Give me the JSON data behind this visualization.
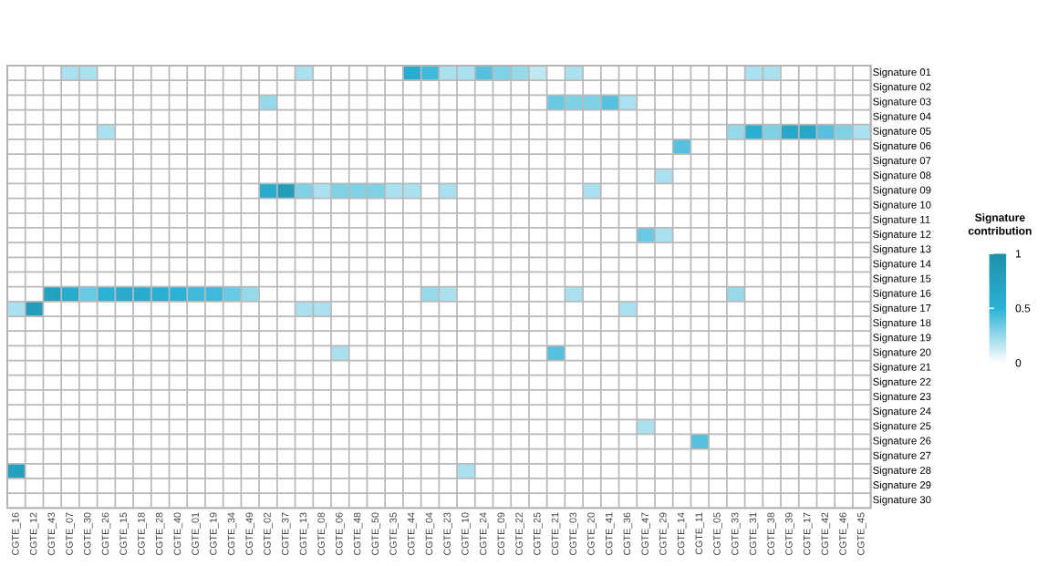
{
  "chart_data": {
    "type": "heatmap",
    "clabel": "Signature contribution",
    "categories": [
      "CGTE_16",
      "CGTE_12",
      "CGTE_43",
      "CGTE_07",
      "CGTE_30",
      "CGTE_26",
      "CGTE_15",
      "CGTE_18",
      "CGTE_28",
      "CGTE_40",
      "CGTE_01",
      "CGTE_19",
      "CGTE_34",
      "CGTE_49",
      "CGTE_02",
      "CGTE_37",
      "CGTE_13",
      "CGTE_08",
      "CGTE_06",
      "CGTE_48",
      "CGTE_50",
      "CGTE_35",
      "CGTE_44",
      "CGTE_04",
      "CGTE_23",
      "CGTE_10",
      "CGTE_24",
      "CGTE_09",
      "CGTE_22",
      "CGTE_25",
      "CGTE_21",
      "CGTE_03",
      "CGTE_20",
      "CGTE_41",
      "CGTE_36",
      "CGTE_47",
      "CGTE_29",
      "CGTE_14",
      "CGTE_11",
      "CGTE_05",
      "CGTE_33",
      "CGTE_31",
      "CGTE_38",
      "CGTE_39",
      "CGTE_17",
      "CGTE_42",
      "CGTE_46",
      "CGTE_45"
    ],
    "y_categories": [
      "Signature 01",
      "Signature 02",
      "Signature 03",
      "Signature 04",
      "Signature 05",
      "Signature 06",
      "Signature 07",
      "Signature 08",
      "Signature 09",
      "Signature 10",
      "Signature 11",
      "Signature 12",
      "Signature 13",
      "Signature 14",
      "Signature 15",
      "Signature 16",
      "Signature 17",
      "Signature 18",
      "Signature 19",
      "Signature 20",
      "Signature 21",
      "Signature 22",
      "Signature 23",
      "Signature 24",
      "Signature 25",
      "Signature 26",
      "Signature 27",
      "Signature 28",
      "Signature 29",
      "Signature 30"
    ],
    "cells": [
      [
        0,
        0,
        0,
        0.2,
        0.2,
        0,
        0,
        0,
        0,
        0,
        0,
        0,
        0,
        0,
        0,
        0,
        0.2,
        0,
        0,
        0,
        0,
        0,
        0.6,
        0.45,
        0.2,
        0.2,
        0.4,
        0.3,
        0.25,
        0.15,
        0,
        0.2,
        0,
        0,
        0,
        0,
        0,
        0,
        0,
        0,
        0,
        0.2,
        0.2,
        0,
        0,
        0,
        0,
        0
      ],
      [
        0,
        0,
        0,
        0,
        0,
        0,
        0,
        0,
        0,
        0,
        0,
        0,
        0,
        0,
        0,
        0,
        0,
        0,
        0,
        0,
        0,
        0,
        0,
        0,
        0,
        0,
        0,
        0,
        0,
        0,
        0,
        0,
        0,
        0,
        0,
        0,
        0,
        0,
        0,
        0,
        0,
        0,
        0,
        0,
        0,
        0,
        0,
        0
      ],
      [
        0,
        0,
        0,
        0,
        0,
        0,
        0,
        0,
        0,
        0,
        0,
        0,
        0,
        0,
        0.25,
        0,
        0,
        0,
        0,
        0,
        0,
        0,
        0,
        0,
        0,
        0,
        0,
        0,
        0,
        0,
        0.35,
        0.3,
        0.3,
        0.4,
        0.2,
        0,
        0,
        0,
        0,
        0,
        0,
        0,
        0,
        0,
        0,
        0,
        0,
        0
      ],
      [
        0,
        0,
        0,
        0,
        0,
        0,
        0,
        0,
        0,
        0,
        0,
        0,
        0,
        0,
        0,
        0,
        0,
        0,
        0,
        0,
        0,
        0,
        0,
        0,
        0,
        0,
        0,
        0,
        0,
        0,
        0,
        0,
        0,
        0,
        0,
        0,
        0,
        0,
        0,
        0,
        0,
        0,
        0,
        0,
        0,
        0,
        0,
        0
      ],
      [
        0,
        0,
        0,
        0,
        0,
        0.2,
        0,
        0,
        0,
        0,
        0,
        0,
        0,
        0,
        0,
        0,
        0,
        0,
        0,
        0,
        0,
        0,
        0,
        0,
        0,
        0,
        0,
        0,
        0,
        0,
        0,
        0,
        0,
        0,
        0,
        0,
        0,
        0,
        0,
        0,
        0.25,
        0.55,
        0.3,
        0.65,
        0.65,
        0.4,
        0.3,
        0.2
      ],
      [
        0,
        0,
        0,
        0,
        0,
        0,
        0,
        0,
        0,
        0,
        0,
        0,
        0,
        0,
        0,
        0,
        0,
        0,
        0,
        0,
        0,
        0,
        0,
        0,
        0,
        0,
        0,
        0,
        0,
        0,
        0,
        0,
        0,
        0,
        0,
        0,
        0,
        0.4,
        0,
        0,
        0,
        0,
        0,
        0,
        0,
        0,
        0,
        0
      ],
      [
        0,
        0,
        0,
        0,
        0,
        0,
        0,
        0,
        0,
        0,
        0,
        0,
        0,
        0,
        0,
        0,
        0,
        0,
        0,
        0,
        0,
        0,
        0,
        0,
        0,
        0,
        0,
        0,
        0,
        0,
        0,
        0,
        0,
        0,
        0,
        0,
        0,
        0,
        0,
        0,
        0,
        0,
        0,
        0,
        0,
        0,
        0,
        0
      ],
      [
        0,
        0,
        0,
        0,
        0,
        0,
        0,
        0,
        0,
        0,
        0,
        0,
        0,
        0,
        0,
        0,
        0,
        0,
        0,
        0,
        0,
        0,
        0,
        0,
        0,
        0,
        0,
        0,
        0,
        0,
        0,
        0,
        0,
        0,
        0,
        0,
        0.2,
        0,
        0,
        0,
        0,
        0,
        0,
        0,
        0,
        0,
        0,
        0
      ],
      [
        0,
        0,
        0,
        0,
        0,
        0,
        0,
        0,
        0,
        0,
        0,
        0,
        0,
        0,
        0.6,
        0.8,
        0.3,
        0.2,
        0.3,
        0.3,
        0.3,
        0.2,
        0.2,
        0,
        0.2,
        0,
        0,
        0,
        0,
        0,
        0,
        0,
        0.2,
        0,
        0,
        0,
        0,
        0,
        0,
        0,
        0,
        0,
        0,
        0,
        0,
        0,
        0,
        0
      ],
      [
        0,
        0,
        0,
        0,
        0,
        0,
        0,
        0,
        0,
        0,
        0,
        0,
        0,
        0,
        0,
        0,
        0,
        0,
        0,
        0,
        0,
        0,
        0,
        0,
        0,
        0,
        0,
        0,
        0,
        0,
        0,
        0,
        0,
        0,
        0,
        0,
        0,
        0,
        0,
        0,
        0,
        0,
        0,
        0,
        0,
        0,
        0,
        0
      ],
      [
        0,
        0,
        0,
        0,
        0,
        0,
        0,
        0,
        0,
        0,
        0,
        0,
        0,
        0,
        0,
        0,
        0,
        0,
        0,
        0,
        0,
        0,
        0,
        0,
        0,
        0,
        0,
        0,
        0,
        0,
        0,
        0,
        0,
        0,
        0,
        0,
        0,
        0,
        0,
        0,
        0,
        0,
        0,
        0,
        0,
        0,
        0,
        0
      ],
      [
        0,
        0,
        0,
        0,
        0,
        0,
        0,
        0,
        0,
        0,
        0,
        0,
        0,
        0,
        0,
        0,
        0,
        0,
        0,
        0,
        0,
        0,
        0,
        0,
        0,
        0,
        0,
        0,
        0,
        0,
        0,
        0,
        0,
        0,
        0,
        0.35,
        0.2,
        0,
        0,
        0,
        0,
        0,
        0,
        0,
        0,
        0,
        0,
        0
      ],
      [
        0,
        0,
        0,
        0,
        0,
        0,
        0,
        0,
        0,
        0,
        0,
        0,
        0,
        0,
        0,
        0,
        0,
        0,
        0,
        0,
        0,
        0,
        0,
        0,
        0,
        0,
        0,
        0,
        0,
        0,
        0,
        0,
        0,
        0,
        0,
        0,
        0,
        0,
        0,
        0,
        0,
        0,
        0,
        0,
        0,
        0,
        0,
        0
      ],
      [
        0,
        0,
        0,
        0,
        0,
        0,
        0,
        0,
        0,
        0,
        0,
        0,
        0,
        0,
        0,
        0,
        0,
        0,
        0,
        0,
        0,
        0,
        0,
        0,
        0,
        0,
        0,
        0,
        0,
        0,
        0,
        0,
        0,
        0,
        0,
        0,
        0,
        0,
        0,
        0,
        0,
        0,
        0,
        0,
        0,
        0,
        0,
        0
      ],
      [
        0,
        0,
        0,
        0,
        0,
        0,
        0,
        0,
        0,
        0,
        0,
        0,
        0,
        0,
        0,
        0,
        0,
        0,
        0,
        0,
        0,
        0,
        0,
        0,
        0,
        0,
        0,
        0,
        0,
        0,
        0,
        0,
        0,
        0,
        0,
        0,
        0,
        0,
        0,
        0,
        0,
        0,
        0,
        0,
        0,
        0,
        0,
        0
      ],
      [
        0,
        0,
        0.75,
        0.6,
        0.35,
        0.5,
        0.6,
        0.6,
        0.55,
        0.5,
        0.45,
        0.45,
        0.35,
        0.25,
        0,
        0,
        0,
        0,
        0,
        0,
        0,
        0,
        0,
        0.25,
        0.2,
        0,
        0,
        0,
        0,
        0,
        0,
        0.2,
        0,
        0,
        0,
        0,
        0,
        0,
        0,
        0,
        0.25,
        0,
        0,
        0,
        0,
        0,
        0,
        0
      ],
      [
        0.2,
        0.8,
        0,
        0,
        0,
        0,
        0,
        0,
        0,
        0,
        0,
        0,
        0,
        0,
        0,
        0,
        0.2,
        0.2,
        0,
        0,
        0,
        0,
        0,
        0,
        0,
        0,
        0,
        0,
        0,
        0,
        0,
        0,
        0,
        0,
        0.2,
        0,
        0,
        0,
        0,
        0,
        0,
        0,
        0,
        0,
        0,
        0,
        0,
        0
      ],
      [
        0,
        0,
        0,
        0,
        0,
        0,
        0,
        0,
        0,
        0,
        0,
        0,
        0,
        0,
        0,
        0,
        0,
        0,
        0,
        0,
        0,
        0,
        0,
        0,
        0,
        0,
        0,
        0,
        0,
        0,
        0,
        0,
        0,
        0,
        0,
        0,
        0,
        0,
        0,
        0,
        0,
        0,
        0,
        0,
        0,
        0,
        0,
        0
      ],
      [
        0,
        0,
        0,
        0,
        0,
        0,
        0,
        0,
        0,
        0,
        0,
        0,
        0,
        0,
        0,
        0,
        0,
        0,
        0,
        0,
        0,
        0,
        0,
        0,
        0,
        0,
        0,
        0,
        0,
        0,
        0,
        0,
        0,
        0,
        0,
        0,
        0,
        0,
        0,
        0,
        0,
        0,
        0,
        0,
        0,
        0,
        0,
        0
      ],
      [
        0,
        0,
        0,
        0,
        0,
        0,
        0,
        0,
        0,
        0,
        0,
        0,
        0,
        0,
        0,
        0,
        0,
        0,
        0.2,
        0,
        0,
        0,
        0,
        0,
        0,
        0,
        0,
        0,
        0,
        0,
        0.4,
        0,
        0,
        0,
        0,
        0,
        0,
        0,
        0,
        0,
        0,
        0,
        0,
        0,
        0,
        0,
        0,
        0
      ],
      [
        0,
        0,
        0,
        0,
        0,
        0,
        0,
        0,
        0,
        0,
        0,
        0,
        0,
        0,
        0,
        0,
        0,
        0,
        0,
        0,
        0,
        0,
        0,
        0,
        0,
        0,
        0,
        0,
        0,
        0,
        0,
        0,
        0,
        0,
        0,
        0,
        0,
        0,
        0,
        0,
        0,
        0,
        0,
        0,
        0,
        0,
        0,
        0
      ],
      [
        0,
        0,
        0,
        0,
        0,
        0,
        0,
        0,
        0,
        0,
        0,
        0,
        0,
        0,
        0,
        0,
        0,
        0,
        0,
        0,
        0,
        0,
        0,
        0,
        0,
        0,
        0,
        0,
        0,
        0,
        0,
        0,
        0,
        0,
        0,
        0,
        0,
        0,
        0,
        0,
        0,
        0,
        0,
        0,
        0,
        0,
        0,
        0
      ],
      [
        0,
        0,
        0,
        0,
        0,
        0,
        0,
        0,
        0,
        0,
        0,
        0,
        0,
        0,
        0,
        0,
        0,
        0,
        0,
        0,
        0,
        0,
        0,
        0,
        0,
        0,
        0,
        0,
        0,
        0,
        0,
        0,
        0,
        0,
        0,
        0,
        0,
        0,
        0,
        0,
        0,
        0,
        0,
        0,
        0,
        0,
        0,
        0
      ],
      [
        0,
        0,
        0,
        0,
        0,
        0,
        0,
        0,
        0,
        0,
        0,
        0,
        0,
        0,
        0,
        0,
        0,
        0,
        0,
        0,
        0,
        0,
        0,
        0,
        0,
        0,
        0,
        0,
        0,
        0,
        0,
        0,
        0,
        0,
        0,
        0,
        0,
        0,
        0,
        0,
        0,
        0,
        0,
        0,
        0,
        0,
        0,
        0
      ],
      [
        0,
        0,
        0,
        0,
        0,
        0,
        0,
        0,
        0,
        0,
        0,
        0,
        0,
        0,
        0,
        0,
        0,
        0,
        0,
        0,
        0,
        0,
        0,
        0,
        0,
        0,
        0,
        0,
        0,
        0,
        0,
        0,
        0,
        0,
        0,
        0.2,
        0,
        0,
        0,
        0,
        0,
        0,
        0,
        0,
        0,
        0,
        0,
        0
      ],
      [
        0,
        0,
        0,
        0,
        0,
        0,
        0,
        0,
        0,
        0,
        0,
        0,
        0,
        0,
        0,
        0,
        0,
        0,
        0,
        0,
        0,
        0,
        0,
        0,
        0,
        0,
        0,
        0,
        0,
        0,
        0,
        0,
        0,
        0,
        0,
        0,
        0,
        0,
        0.4,
        0,
        0,
        0,
        0,
        0,
        0,
        0,
        0,
        0
      ],
      [
        0,
        0,
        0,
        0,
        0,
        0,
        0,
        0,
        0,
        0,
        0,
        0,
        0,
        0,
        0,
        0,
        0,
        0,
        0,
        0,
        0,
        0,
        0,
        0,
        0,
        0,
        0,
        0,
        0,
        0,
        0,
        0,
        0,
        0,
        0,
        0,
        0,
        0,
        0,
        0,
        0,
        0,
        0,
        0,
        0,
        0,
        0,
        0
      ],
      [
        0.75,
        0,
        0,
        0,
        0,
        0,
        0,
        0,
        0,
        0,
        0,
        0,
        0,
        0,
        0,
        0,
        0,
        0,
        0,
        0,
        0,
        0,
        0,
        0,
        0,
        0.2,
        0,
        0,
        0,
        0,
        0,
        0,
        0,
        0,
        0,
        0,
        0,
        0,
        0,
        0,
        0,
        0,
        0,
        0,
        0,
        0,
        0,
        0
      ],
      [
        0,
        0,
        0,
        0,
        0,
        0,
        0,
        0,
        0,
        0,
        0,
        0,
        0,
        0,
        0,
        0,
        0,
        0,
        0,
        0,
        0,
        0,
        0,
        0,
        0,
        0,
        0,
        0,
        0,
        0,
        0,
        0,
        0,
        0,
        0,
        0,
        0,
        0,
        0,
        0,
        0,
        0,
        0,
        0,
        0,
        0,
        0,
        0
      ],
      [
        0,
        0,
        0,
        0,
        0,
        0,
        0,
        0,
        0,
        0,
        0,
        0,
        0,
        0,
        0,
        0,
        0,
        0,
        0,
        0,
        0,
        0,
        0,
        0,
        0,
        0,
        0,
        0,
        0,
        0,
        0,
        0,
        0,
        0,
        0,
        0,
        0,
        0,
        0,
        0,
        0,
        0,
        0,
        0,
        0,
        0,
        0,
        0
      ]
    ],
    "clim": [
      0,
      1
    ],
    "cticks": [
      0,
      0.5,
      1
    ]
  }
}
